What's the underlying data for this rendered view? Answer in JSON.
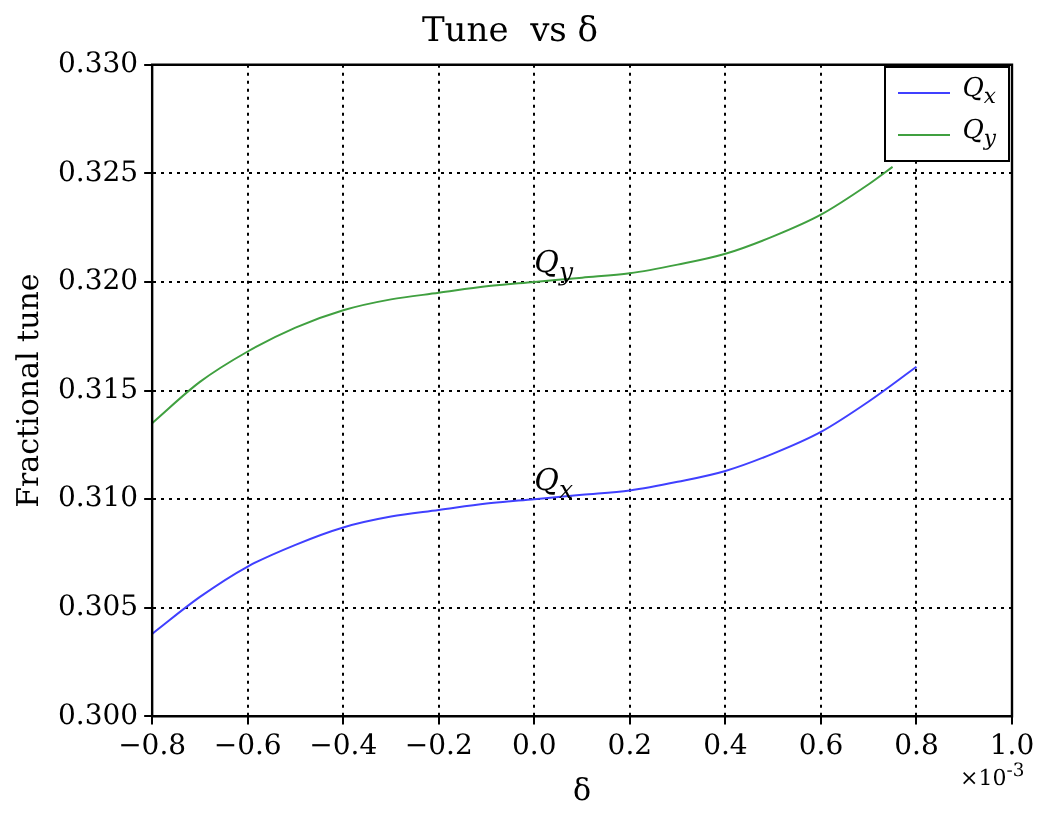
{
  "chart_data": {
    "type": "line",
    "title": "Tune  vs δ",
    "xlabel": "δ",
    "ylabel": "Fractional tune",
    "xlim": [
      -0.8,
      1.0
    ],
    "xticks": [
      {
        "value": -0.8,
        "label": "−0.8"
      },
      {
        "value": -0.6,
        "label": "−0.6"
      },
      {
        "value": -0.4,
        "label": "−0.4"
      },
      {
        "value": -0.2,
        "label": "−0.2"
      },
      {
        "value": 0,
        "label": "0.0"
      },
      0.2,
      0.4,
      0.6,
      0.8,
      {
        "value": 1.0,
        "label": "1.0"
      }
    ],
    "ylim": [
      0.3,
      0.33
    ],
    "yticks": [
      {
        "value": 0.3,
        "label": "0.300"
      },
      0.305,
      {
        "value": 0.31,
        "label": "0.310"
      },
      0.315,
      {
        "value": 0.32,
        "label": "0.320"
      },
      0.325,
      {
        "value": 0.33,
        "label": "0.330"
      }
    ],
    "grid": true,
    "legend": "top right",
    "marker": "none",
    "line_style": "solid",
    "series": [
      {
        "name": "Q$_{x}$",
        "color": "#4040ff",
        "x": [
          -0.8,
          -0.7,
          -0.6,
          -0.5,
          -0.4,
          -0.3,
          -0.2,
          -0.1,
          0,
          0.1,
          0.2,
          0.3,
          0.4,
          0.5,
          0.6,
          0.7,
          0.8
        ],
        "values": [
          0.3038,
          0.3055,
          0.3069,
          0.3079,
          0.3087,
          0.3092,
          0.3095,
          0.3098,
          0.31,
          0.3102,
          0.3104,
          0.3108,
          0.3113,
          0.3121,
          0.3131,
          0.3145,
          0.3161
        ]
      },
      {
        "name": "Q$_{y}$",
        "color": "#40a040",
        "x": [
          -0.8,
          -0.7,
          -0.6,
          -0.5,
          -0.4,
          -0.3,
          -0.2,
          -0.1,
          0,
          0.1,
          0.2,
          0.3,
          0.4,
          0.5,
          0.6,
          0.7,
          0.75
        ],
        "values": [
          0.3135,
          0.3154,
          0.3168,
          0.3179,
          0.3187,
          0.3192,
          0.3195,
          0.3198,
          0.32,
          0.3202,
          0.3204,
          0.3208,
          0.3213,
          0.3221,
          0.3231,
          0.3245,
          0.3253
        ]
      }
    ],
    "annotations": [
      {
        "text": "Q$_{y}$",
        "x": 0,
        "y": 0.32
      },
      {
        "text": "Q$_{x}$",
        "x": 0,
        "y": 0.31
      },
      "×10$^{-3}$"
    ]
  }
}
